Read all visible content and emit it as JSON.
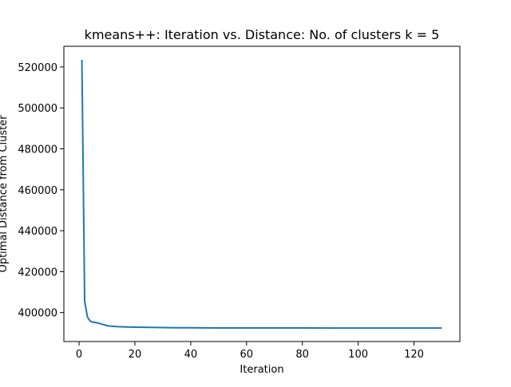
{
  "chart_data": {
    "type": "line",
    "title": "kmeans++: Iteration vs. Distance: No. of clusters k = 5",
    "xlabel": "Iteration",
    "ylabel": "Optimal Distance from Cluster",
    "xlim": [
      -5.45,
      136.45
    ],
    "ylim": [
      385850,
      530100
    ],
    "xticks": [
      0,
      20,
      40,
      60,
      80,
      100,
      120
    ],
    "yticks": [
      400000,
      420000,
      440000,
      460000,
      480000,
      500000,
      520000
    ],
    "grid": false,
    "legend": "none",
    "series": [
      {
        "color": "#1f77b4",
        "x": [
          1,
          2,
          3,
          4,
          5,
          6,
          7,
          8,
          9,
          10,
          11,
          12,
          14,
          16,
          18,
          20,
          25,
          30,
          35,
          40,
          50,
          60,
          70,
          80,
          90,
          100,
          110,
          120,
          130
        ],
        "y": [
          523500,
          405500,
          397800,
          395800,
          395300,
          395100,
          394800,
          394400,
          394000,
          393600,
          393400,
          393300,
          393100,
          393000,
          392900,
          392850,
          392750,
          392650,
          392600,
          392550,
          392500,
          392480,
          392470,
          392460,
          392450,
          392450,
          392440,
          392440,
          392440
        ]
      }
    ]
  }
}
